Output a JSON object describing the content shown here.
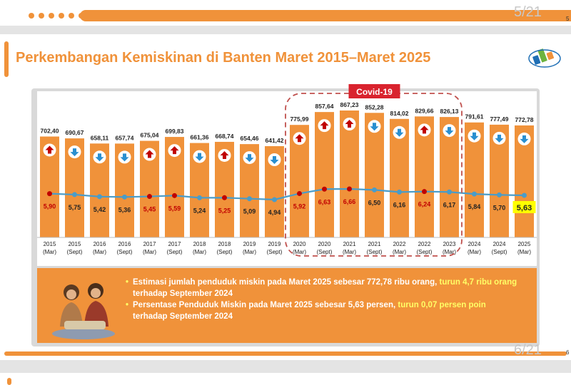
{
  "slide": {
    "page_current": "5/21",
    "page_next": "6/21",
    "page_small_top": "5",
    "page_small_bottom": "6",
    "title": "Perkembangan Kemiskinan di Banten Maret 2015–Maret 2025",
    "accent_color": "#f0923a",
    "logo_icon": "bps-logo-icon"
  },
  "chart_data": {
    "type": "bar",
    "annotation": "Covid-19",
    "annotation_range": [
      "2020 (Mar)",
      "2023 (Mar)"
    ],
    "categories": [
      {
        "year": "2015",
        "period": "(Mar)"
      },
      {
        "year": "2015",
        "period": "(Sept)"
      },
      {
        "year": "2016",
        "period": "(Mar)"
      },
      {
        "year": "2016",
        "period": "(Sept)"
      },
      {
        "year": "2017",
        "period": "(Mar)"
      },
      {
        "year": "2017",
        "period": "(Sept)"
      },
      {
        "year": "2018",
        "period": "(Mar)"
      },
      {
        "year": "2018",
        "period": "(Sept)"
      },
      {
        "year": "2019",
        "period": "(Mar)"
      },
      {
        "year": "2019",
        "period": "(Sept)"
      },
      {
        "year": "2020",
        "period": "(Mar)"
      },
      {
        "year": "2020",
        "period": "(Sept)"
      },
      {
        "year": "2021",
        "period": "(Mar)"
      },
      {
        "year": "2021",
        "period": "(Sept)"
      },
      {
        "year": "2022",
        "period": "(Mar)"
      },
      {
        "year": "2022",
        "period": "(Sept)"
      },
      {
        "year": "2023",
        "period": "(Mar)"
      },
      {
        "year": "2024",
        "period": "(Mar)"
      },
      {
        "year": "2024",
        "period": "(Sept)"
      },
      {
        "year": "2025",
        "period": "(Mar)"
      }
    ],
    "series": [
      {
        "kind": "bar",
        "values": [
          702.4,
          690.67,
          658.11,
          657.74,
          675.04,
          699.83,
          661.36,
          668.74,
          654.46,
          641.42,
          775.99,
          857.64,
          867.23,
          852.28,
          814.02,
          829.66,
          826.13,
          791.61,
          777.49,
          772.78
        ],
        "labels": [
          "702,40",
          "690,67",
          "658,11",
          "657,74",
          "675,04",
          "699,83",
          "661,36",
          "668,74",
          "654,46",
          "641,42",
          "775,99",
          "857,64",
          "867,23",
          "852,28",
          "814,02",
          "829,66",
          "826,13",
          "791,61",
          "777,49",
          "772,78"
        ],
        "trend": [
          "up",
          "down",
          "down",
          "down",
          "up",
          "up",
          "down",
          "up",
          "down",
          "down",
          "up",
          "up",
          "up",
          "down",
          "down",
          "up",
          "down",
          "down",
          "down",
          "down"
        ],
        "color": "#f0923a"
      },
      {
        "kind": "line",
        "values": [
          5.9,
          5.75,
          5.42,
          5.36,
          5.45,
          5.59,
          5.24,
          5.25,
          5.09,
          4.94,
          5.92,
          6.63,
          6.66,
          6.5,
          6.16,
          6.24,
          6.17,
          5.84,
          5.7,
          5.63
        ],
        "labels": [
          "5,90",
          "5,75",
          "5,42",
          "5,36",
          "5,45",
          "5,59",
          "5,24",
          "5,25",
          "5,09",
          "4,94",
          "5,92",
          "6,63",
          "6,66",
          "6,50",
          "6,16",
          "6,24",
          "6,17",
          "5,84",
          "5,70",
          "5,63"
        ],
        "trend": [
          "up",
          "down",
          "down",
          "down",
          "up",
          "up",
          "down",
          "up",
          "down",
          "down",
          "up",
          "up",
          "up",
          "down",
          "down",
          "up",
          "down",
          "down",
          "down",
          "down"
        ],
        "line_color": "#4a9cc8",
        "up_color": "#c00000",
        "down_color": "#4a9cc8"
      }
    ],
    "highlight_last_label_color": "#ffff00"
  },
  "info": {
    "bullet1_text": "Estimasi jumlah penduduk miskin pada Maret 2025 sebesar 772,78 ribu orang,",
    "bullet1_highlight": "turun 4,7 ribu orang",
    "bullet1_tail": "terhadap September 2024",
    "bullet2_text": "Persentase Penduduk Miskin pada Maret 2025 sebesar 5,63 persen,",
    "bullet2_highlight": "turun 0,07 persen poin",
    "bullet2_tail": "terhadap September 2024",
    "highlight_color": "#ffff66"
  }
}
